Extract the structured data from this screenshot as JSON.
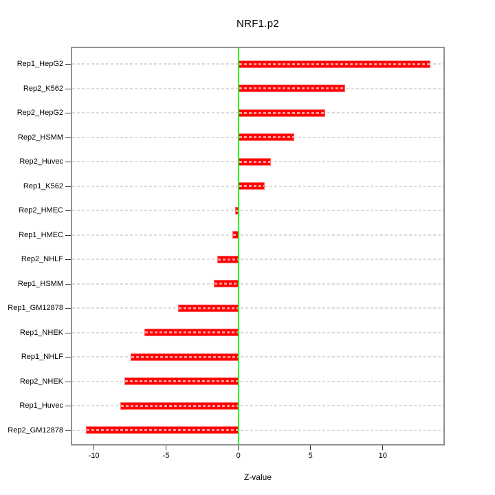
{
  "chart_data": {
    "type": "bar",
    "orientation": "horizontal",
    "title": "NRF1.p2",
    "xlabel": "Z-value",
    "categories": [
      "Rep1_HepG2",
      "Rep2_K562",
      "Rep2_HepG2",
      "Rep2_HSMM",
      "Rep2_Huvec",
      "Rep1_K562",
      "Rep2_HMEC",
      "Rep1_HMEC",
      "Rep2_NHLF",
      "Rep1_HSMM",
      "Rep1_GM12878",
      "Rep1_NHEK",
      "Rep1_NHLF",
      "Rep2_NHEK",
      "Rep1_Huvec",
      "Rep2_GM12878"
    ],
    "values": [
      13.3,
      7.4,
      6.0,
      3.85,
      2.25,
      1.85,
      -0.2,
      -0.4,
      -1.45,
      -1.7,
      -4.15,
      -6.5,
      -7.45,
      -7.9,
      -8.15,
      -10.55
    ],
    "xticks": [
      -10,
      -5,
      0,
      5,
      10
    ],
    "xtick_labels": [
      "-10",
      "-5",
      "0",
      "5",
      "10"
    ],
    "xlim": [
      -11.5,
      14.2
    ],
    "grid": "horizontal-dashed-per-category",
    "legend": "none",
    "zero_reference_line": 0,
    "colors": {
      "bar": "#FE0000",
      "bar_hatch": "#FF9999",
      "zero_line": "#00FF00",
      "gridline": "#DADADA",
      "plot_border": "#909090",
      "text": "#000000"
    }
  }
}
